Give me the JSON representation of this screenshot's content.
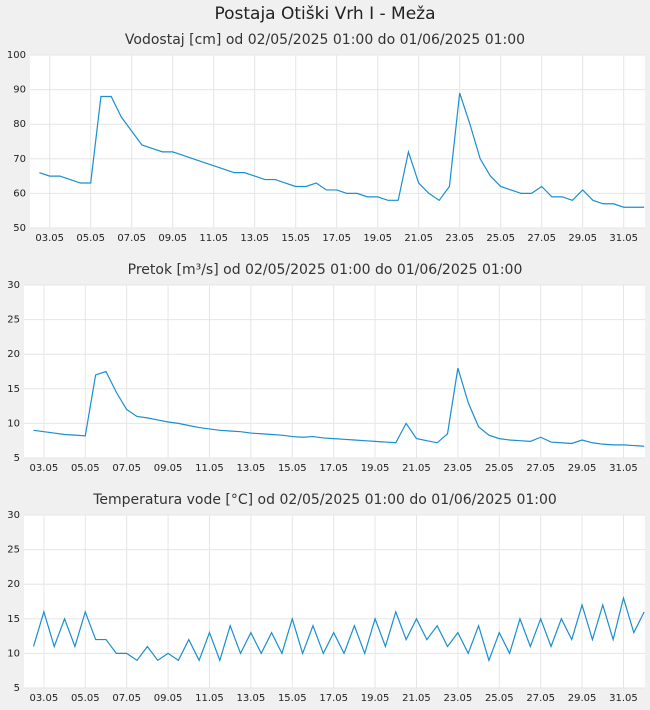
{
  "title": "Postaja Otiški Vrh I - Meža",
  "chart_data": [
    {
      "type": "line",
      "title": "Vodostaj [cm] od 02/05/2025 01:00 do 01/06/2025 01:00",
      "x": [
        2.5,
        3,
        3.5,
        4,
        4.5,
        5,
        5.5,
        6,
        6.5,
        7,
        7.5,
        8,
        8.5,
        9,
        9.5,
        10,
        10.5,
        11,
        11.5,
        12,
        12.5,
        13,
        13.5,
        14,
        14.5,
        15,
        15.5,
        16,
        16.5,
        17,
        17.5,
        18,
        18.5,
        19,
        19.5,
        20,
        20.5,
        21,
        21.5,
        22,
        22.5,
        23,
        23.5,
        24,
        24.5,
        25,
        25.5,
        26,
        26.5,
        27,
        27.5,
        28,
        28.5,
        29,
        29.5,
        30,
        30.5,
        31,
        31.5,
        32
      ],
      "values": [
        66,
        65,
        65,
        64,
        63,
        63,
        88,
        88,
        82,
        78,
        74,
        73,
        72,
        72,
        71,
        70,
        69,
        68,
        67,
        66,
        66,
        65,
        64,
        64,
        63,
        62,
        62,
        63,
        61,
        61,
        60,
        60,
        59,
        59,
        58,
        58,
        72,
        63,
        60,
        58,
        62,
        89,
        80,
        70,
        65,
        62,
        61,
        60,
        60,
        62,
        59,
        59,
        58,
        61,
        58,
        57,
        57,
        56,
        56,
        56
      ],
      "color": "#1a8fd0",
      "xlim": [
        2.04,
        32.04
      ],
      "ylim": [
        50,
        100
      ],
      "yticks": [
        50,
        60,
        70,
        80,
        90,
        100
      ],
      "xticks": [
        {
          "value": 3,
          "label": "03.05"
        },
        {
          "value": 5,
          "label": "05.05"
        },
        {
          "value": 7,
          "label": "07.05"
        },
        {
          "value": 9,
          "label": "09.05"
        },
        {
          "value": 11,
          "label": "11.05"
        },
        {
          "value": 13,
          "label": "13.05"
        },
        {
          "value": 15,
          "label": "15.05"
        },
        {
          "value": 17,
          "label": "17.05"
        },
        {
          "value": 19,
          "label": "19.05"
        },
        {
          "value": 21,
          "label": "21.05"
        },
        {
          "value": 23,
          "label": "23.05"
        },
        {
          "value": 25,
          "label": "25.05"
        },
        {
          "value": 27,
          "label": "27.05"
        },
        {
          "value": 29,
          "label": "29.05"
        },
        {
          "value": 31,
          "label": "31.05"
        }
      ],
      "grid": true
    },
    {
      "type": "line",
      "title": "Pretok [m³/s] od 02/05/2025 01:00 do 01/06/2025 01:00",
      "x": [
        2.5,
        3,
        3.5,
        4,
        4.5,
        5,
        5.5,
        6,
        6.5,
        7,
        7.5,
        8,
        8.5,
        9,
        9.5,
        10,
        10.5,
        11,
        11.5,
        12,
        12.5,
        13,
        13.5,
        14,
        14.5,
        15,
        15.5,
        16,
        16.5,
        17,
        17.5,
        18,
        18.5,
        19,
        19.5,
        20,
        20.5,
        21,
        21.5,
        22,
        22.5,
        23,
        23.5,
        24,
        24.5,
        25,
        25.5,
        26,
        26.5,
        27,
        27.5,
        28,
        28.5,
        29,
        29.5,
        30,
        30.5,
        31,
        31.5,
        32
      ],
      "values": [
        9,
        8.8,
        8.6,
        8.4,
        8.3,
        8.2,
        17,
        17.5,
        14.5,
        12,
        11,
        10.8,
        10.5,
        10.2,
        10,
        9.7,
        9.4,
        9.2,
        9,
        8.9,
        8.8,
        8.6,
        8.5,
        8.4,
        8.3,
        8.1,
        8,
        8.1,
        7.9,
        7.8,
        7.7,
        7.6,
        7.5,
        7.4,
        7.3,
        7.2,
        10,
        7.8,
        7.5,
        7.2,
        8.5,
        18,
        13,
        9.5,
        8.3,
        7.8,
        7.6,
        7.5,
        7.4,
        8,
        7.3,
        7.2,
        7.1,
        7.6,
        7.2,
        7,
        6.9,
        6.9,
        6.8,
        6.7
      ],
      "color": "#1a8fd0",
      "xlim": [
        2.04,
        32.04
      ],
      "ylim": [
        5,
        30
      ],
      "yticks": [
        5,
        10,
        15,
        20,
        25,
        30
      ],
      "xticks": [
        {
          "value": 3,
          "label": "03.05"
        },
        {
          "value": 5,
          "label": "05.05"
        },
        {
          "value": 7,
          "label": "07.05"
        },
        {
          "value": 9,
          "label": "09.05"
        },
        {
          "value": 11,
          "label": "11.05"
        },
        {
          "value": 13,
          "label": "13.05"
        },
        {
          "value": 15,
          "label": "15.05"
        },
        {
          "value": 17,
          "label": "17.05"
        },
        {
          "value": 19,
          "label": "19.05"
        },
        {
          "value": 21,
          "label": "21.05"
        },
        {
          "value": 23,
          "label": "23.05"
        },
        {
          "value": 25,
          "label": "25.05"
        },
        {
          "value": 27,
          "label": "27.05"
        },
        {
          "value": 29,
          "label": "29.05"
        },
        {
          "value": 31,
          "label": "31.05"
        }
      ],
      "grid": true
    },
    {
      "type": "line",
      "title": "Temperatura vode [°C] od 02/05/2025 01:00 do 01/06/2025 01:00",
      "x": [
        2.5,
        3,
        3.5,
        4,
        4.5,
        5,
        5.5,
        6,
        6.5,
        7,
        7.5,
        8,
        8.5,
        9,
        9.5,
        10,
        10.5,
        11,
        11.5,
        12,
        12.5,
        13,
        13.5,
        14,
        14.5,
        15,
        15.5,
        16,
        16.5,
        17,
        17.5,
        18,
        18.5,
        19,
        19.5,
        20,
        20.5,
        21,
        21.5,
        22,
        22.5,
        23,
        23.5,
        24,
        24.5,
        25,
        25.5,
        26,
        26.5,
        27,
        27.5,
        28,
        28.5,
        29,
        29.5,
        30,
        30.5,
        31,
        31.5,
        32
      ],
      "values": [
        11,
        16,
        11,
        15,
        11,
        16,
        12,
        12,
        10,
        10,
        9,
        11,
        9,
        10,
        9,
        12,
        9,
        13,
        9,
        14,
        10,
        13,
        10,
        13,
        10,
        15,
        10,
        14,
        10,
        13,
        10,
        14,
        10,
        15,
        11,
        16,
        12,
        15,
        12,
        14,
        11,
        13,
        10,
        14,
        9,
        13,
        10,
        15,
        11,
        15,
        11,
        15,
        12,
        17,
        12,
        17,
        12,
        18,
        13,
        16
      ],
      "color": "#1a8fd0",
      "xlim": [
        2.04,
        32.04
      ],
      "ylim": [
        5,
        30
      ],
      "yticks": [
        5,
        10,
        15,
        20,
        25,
        30
      ],
      "xticks": [
        {
          "value": 3,
          "label": "03.05"
        },
        {
          "value": 5,
          "label": "05.05"
        },
        {
          "value": 7,
          "label": "07.05"
        },
        {
          "value": 9,
          "label": "09.05"
        },
        {
          "value": 11,
          "label": "11.05"
        },
        {
          "value": 13,
          "label": "13.05"
        },
        {
          "value": 15,
          "label": "15.05"
        },
        {
          "value": 17,
          "label": "17.05"
        },
        {
          "value": 19,
          "label": "19.05"
        },
        {
          "value": 21,
          "label": "21.05"
        },
        {
          "value": 23,
          "label": "23.05"
        },
        {
          "value": 25,
          "label": "25.05"
        },
        {
          "value": 27,
          "label": "27.05"
        },
        {
          "value": 29,
          "label": "29.05"
        },
        {
          "value": 31,
          "label": "31.05"
        }
      ],
      "grid": true
    }
  ]
}
